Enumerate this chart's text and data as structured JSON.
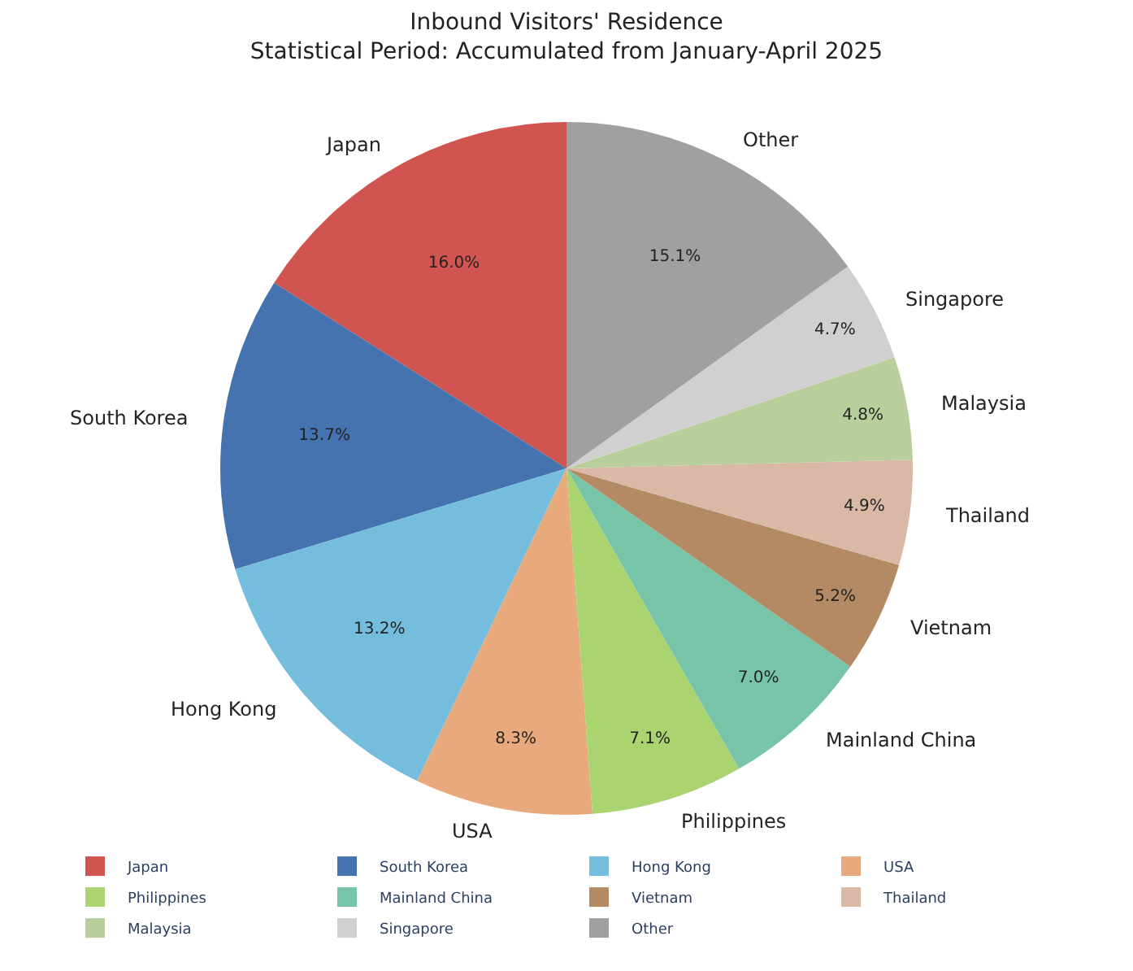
{
  "chart_data": {
    "type": "pie",
    "title": "Inbound Visitors' Residence",
    "subtitle": "Statistical Period: Accumulated from January-April 2025",
    "categories": [
      "Japan",
      "South Korea",
      "Hong Kong",
      "USA",
      "Philippines",
      "Mainland China",
      "Vietnam",
      "Thailand",
      "Malaysia",
      "Singapore",
      "Other"
    ],
    "values": [
      16.0,
      13.7,
      13.2,
      8.3,
      7.1,
      7.0,
      5.2,
      4.9,
      4.8,
      4.7,
      15.1
    ],
    "value_labels": [
      "16.0%",
      "13.7%",
      "13.2%",
      "8.3%",
      "7.1%",
      "7.0%",
      "5.2%",
      "4.9%",
      "4.8%",
      "4.7%",
      "15.1%"
    ],
    "colors": [
      "#d0544f",
      "#4473b0",
      "#74bddc",
      "#e8a97d",
      "#a9d46f",
      "#78c4a8",
      "#b48a64",
      "#d9b8a6",
      "#b9cf9b",
      "#d0d0d0",
      "#a0a0a0"
    ],
    "legend": "bottom"
  }
}
